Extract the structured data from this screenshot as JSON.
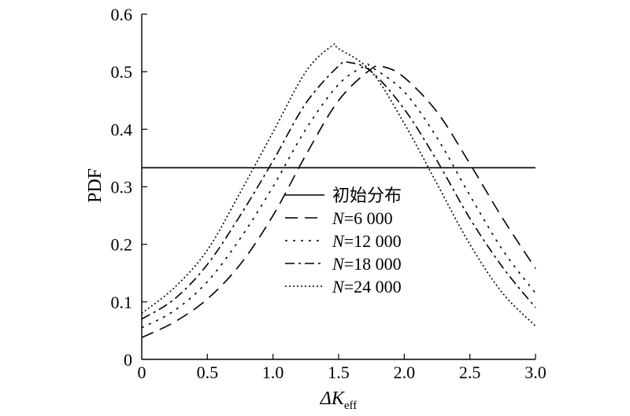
{
  "chart_data": {
    "type": "line",
    "xlabel": "ΔK",
    "xlabel_sub": "eff",
    "ylabel": "PDF",
    "xlim": [
      0,
      3.0
    ],
    "ylim": [
      0,
      0.6
    ],
    "x_ticks": [
      "0",
      "0.5",
      "1.0",
      "1.5",
      "2.0",
      "2.5",
      "3.0"
    ],
    "y_ticks": [
      "0",
      "0.1",
      "0.2",
      "0.3",
      "0.4",
      "0.5",
      "0.6"
    ],
    "legend_position": "center",
    "series": [
      {
        "name": "初始分布",
        "label_italic": "",
        "label_rest": "初始分布",
        "style": "solid",
        "x": [
          0,
          3.0
        ],
        "values": [
          0.333,
          0.333
        ]
      },
      {
        "name": "N=6 000",
        "label_italic": "N",
        "label_rest": "=6 000",
        "style": "dashed",
        "x": [
          0,
          0.25,
          0.5,
          0.75,
          1.0,
          1.25,
          1.5,
          1.75,
          1.85,
          2.0,
          2.25,
          2.5,
          2.75,
          3.0
        ],
        "values": [
          0.038,
          0.065,
          0.105,
          0.165,
          0.25,
          0.355,
          0.45,
          0.505,
          0.508,
          0.49,
          0.43,
          0.34,
          0.245,
          0.158
        ]
      },
      {
        "name": "N=12 000",
        "label_italic": "N",
        "label_rest": "=12 000",
        "style": "dotdashed-long",
        "x": [
          0,
          0.25,
          0.5,
          0.75,
          1.0,
          1.25,
          1.5,
          1.7,
          1.75,
          2.0,
          2.25,
          2.5,
          2.75,
          3.0
        ],
        "values": [
          0.055,
          0.085,
          0.135,
          0.21,
          0.3,
          0.4,
          0.478,
          0.51,
          0.508,
          0.465,
          0.385,
          0.285,
          0.19,
          0.115
        ]
      },
      {
        "name": "N=18 000",
        "label_italic": "N",
        "label_rest": "=18 000",
        "style": "dashdot",
        "x": [
          0,
          0.25,
          0.5,
          0.75,
          1.0,
          1.25,
          1.5,
          1.58,
          1.75,
          2.0,
          2.25,
          2.5,
          2.75,
          3.0
        ],
        "values": [
          0.07,
          0.105,
          0.165,
          0.25,
          0.345,
          0.445,
          0.51,
          0.516,
          0.5,
          0.435,
          0.345,
          0.245,
          0.16,
          0.09
        ]
      },
      {
        "name": "N=24 000",
        "label_italic": "N",
        "label_rest": "=24 000",
        "style": "dotted",
        "x": [
          0,
          0.25,
          0.5,
          0.75,
          1.0,
          1.25,
          1.45,
          1.5,
          1.75,
          2.0,
          2.25,
          2.5,
          2.75,
          3.0
        ],
        "values": [
          0.08,
          0.125,
          0.19,
          0.29,
          0.395,
          0.5,
          0.545,
          0.54,
          0.5,
          0.41,
          0.305,
          0.2,
          0.115,
          0.058
        ]
      }
    ]
  }
}
